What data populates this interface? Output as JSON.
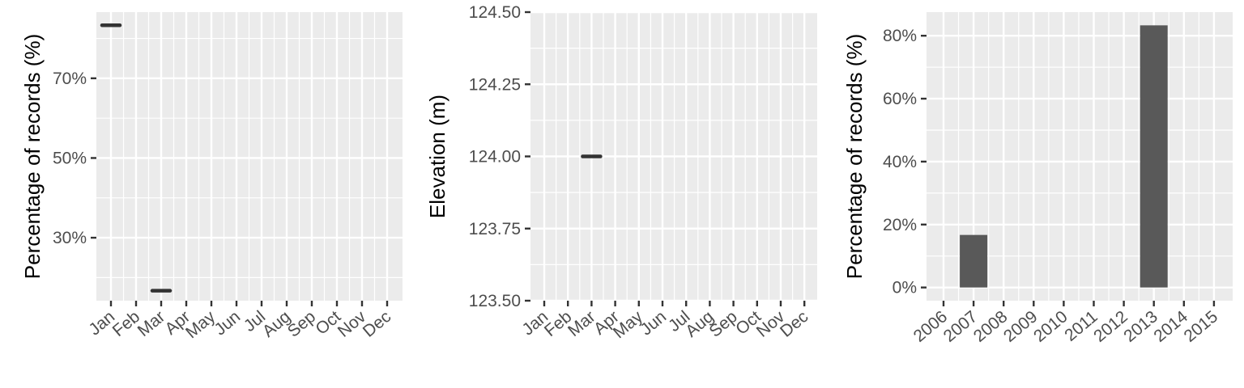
{
  "chart_data": [
    {
      "type": "scatter",
      "ylabel": "Percentage of records (%)",
      "categories": [
        "Jan",
        "Feb",
        "Mar",
        "Apr",
        "May",
        "Jun",
        "Jul",
        "Aug",
        "Sep",
        "Oct",
        "Nov",
        "Dec"
      ],
      "yticks": [
        30,
        50,
        70
      ],
      "ytick_labels": [
        "30%",
        "50%",
        "70%"
      ],
      "ylim": [
        14.2,
        86.6
      ],
      "grid": true,
      "points": [
        {
          "category": "Jan",
          "value": 83.3
        },
        {
          "category": "Mar",
          "value": 16.7
        }
      ]
    },
    {
      "type": "scatter",
      "ylabel": "Elevation (m)",
      "categories": [
        "Jan",
        "Feb",
        "Mar",
        "Apr",
        "May",
        "Jun",
        "Jul",
        "Aug",
        "Sep",
        "Oct",
        "Nov",
        "Dec"
      ],
      "yticks": [
        123.5,
        123.75,
        124.0,
        124.25,
        124.5
      ],
      "ytick_labels": [
        "123.50",
        "123.75",
        "124.00",
        "124.25",
        "124.50"
      ],
      "ylim": [
        123.5,
        124.5
      ],
      "grid": true,
      "points": [
        {
          "category": "Mar",
          "value": 124.0
        }
      ]
    },
    {
      "type": "bar",
      "ylabel": "Percentage of records (%)",
      "categories": [
        "2006",
        "2007",
        "2008",
        "2009",
        "2010",
        "2011",
        "2012",
        "2013",
        "2014",
        "2015"
      ],
      "values": [
        0,
        16.7,
        0,
        0,
        0,
        0,
        0,
        83.3,
        0,
        0
      ],
      "yticks": [
        0,
        20,
        40,
        60,
        80
      ],
      "ytick_labels": [
        "0%",
        "20%",
        "40%",
        "60%",
        "80%"
      ],
      "ylim": [
        -4.2,
        87.5
      ],
      "grid": true,
      "bar_color": "#595959"
    }
  ]
}
